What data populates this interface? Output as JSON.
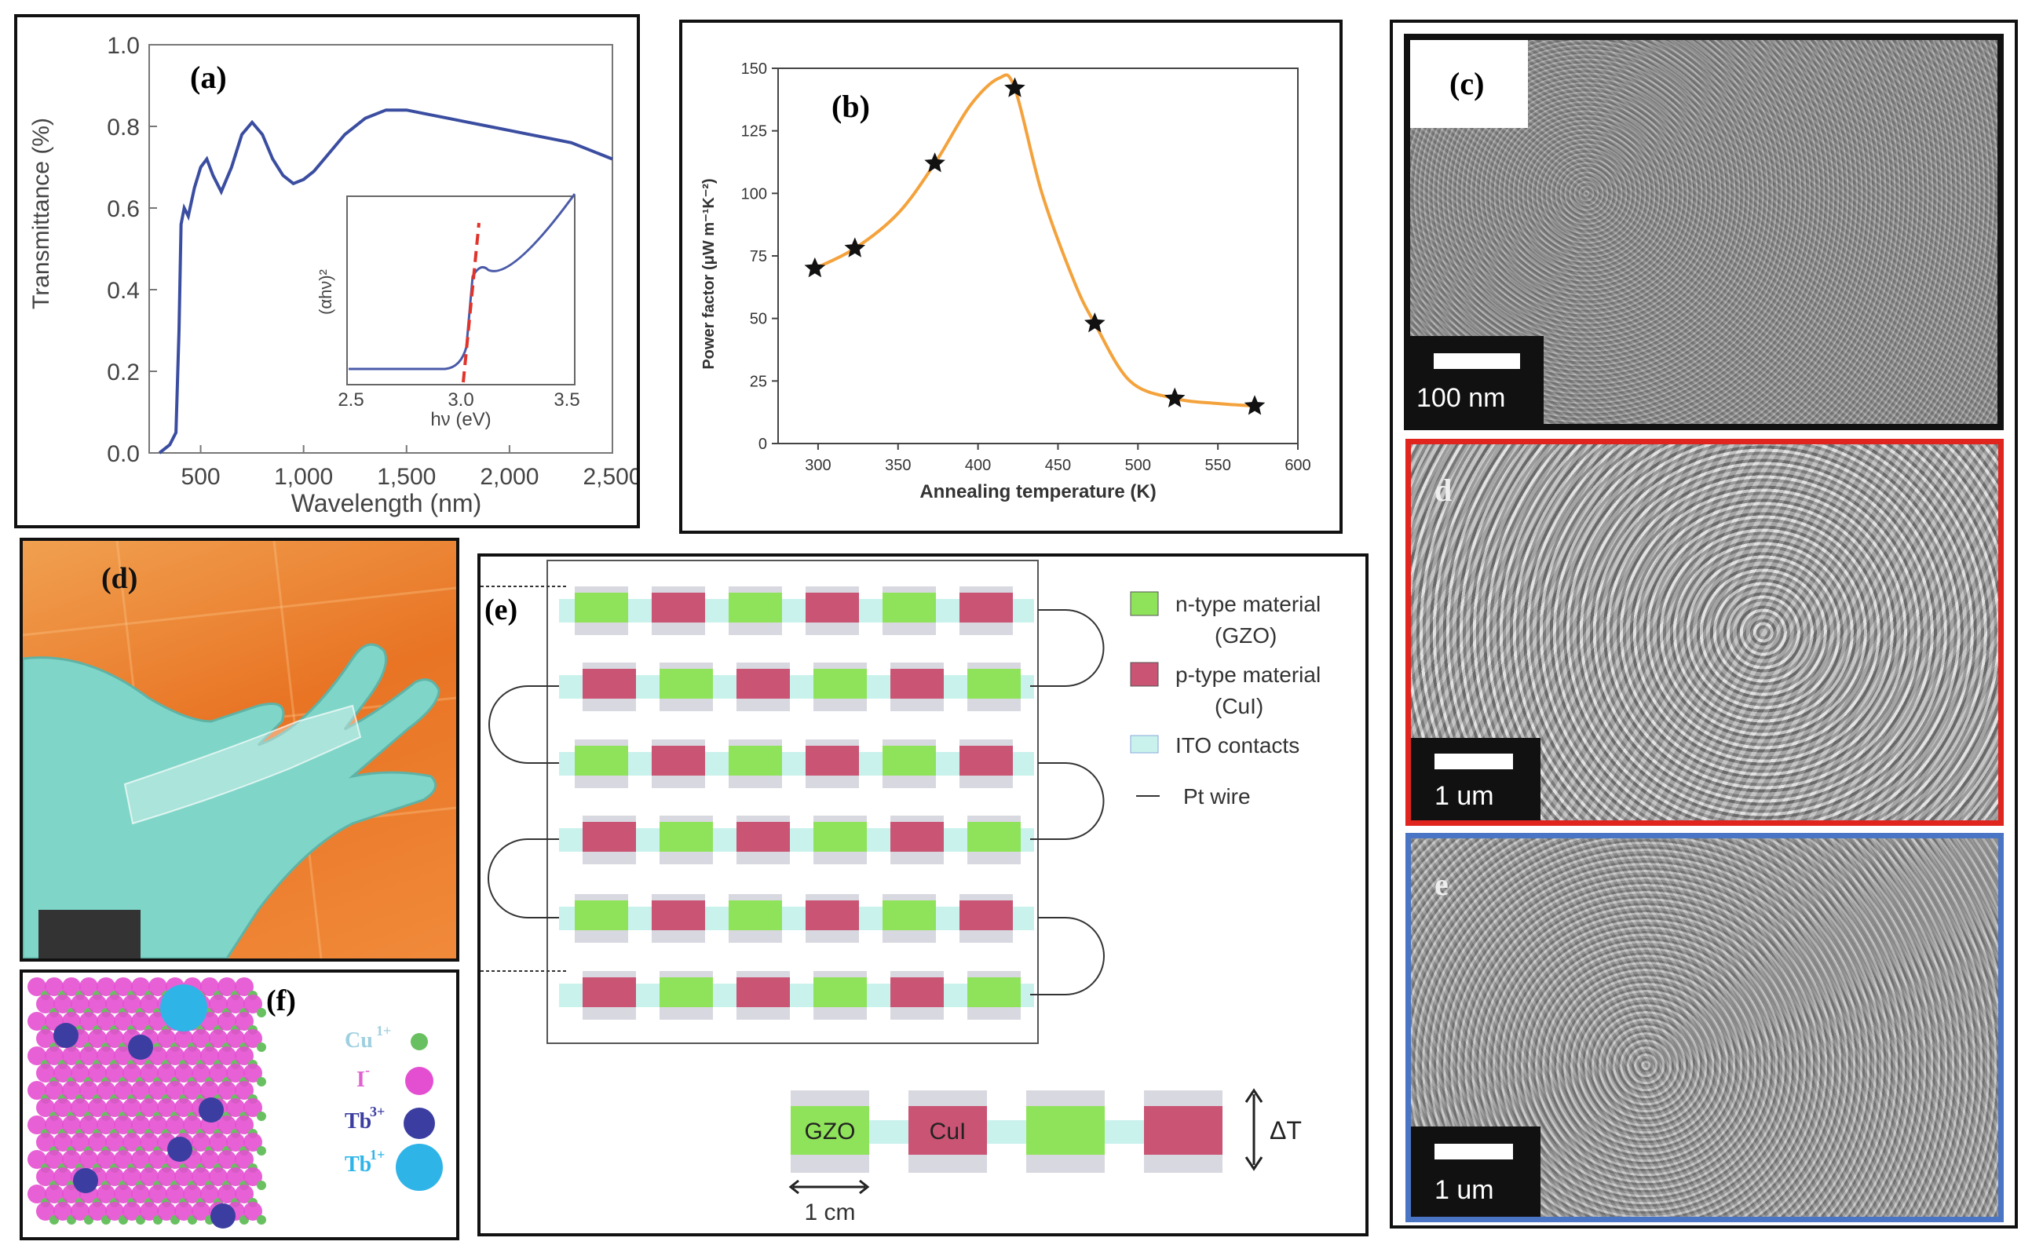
{
  "panel_a": {
    "label": "(a)",
    "ylabel": "Transmittance (%)",
    "xlabel": "Wavelength (nm)",
    "yticks": [
      "0.0",
      "0.2",
      "0.4",
      "0.6",
      "0.8",
      "1.0"
    ],
    "xticks": [
      "500",
      "1,000",
      "1,500",
      "2,000",
      "2,500"
    ],
    "inset_ylabel": "(αhν)²",
    "inset_xlabel": "hν (eV)",
    "inset_xticks": [
      "2.5",
      "3.0",
      "3.5"
    ],
    "colors": {
      "curve": "#3a4da0",
      "tangent": "#e0332a"
    }
  },
  "chart_data": [
    {
      "type": "line",
      "title": "(a)",
      "xlabel": "Wavelength (nm)",
      "ylabel": "Transmittance (%)",
      "xlim": [
        250,
        2500
      ],
      "ylim": [
        0,
        1.0
      ],
      "x": [
        300,
        350,
        380,
        395,
        405,
        420,
        440,
        470,
        500,
        530,
        560,
        600,
        650,
        700,
        750,
        800,
        850,
        900,
        950,
        1000,
        1050,
        1100,
        1200,
        1300,
        1400,
        1500,
        1600,
        1700,
        1800,
        1900,
        2000,
        2100,
        2200,
        2300,
        2400,
        2500
      ],
      "values": [
        0.0,
        0.02,
        0.05,
        0.3,
        0.56,
        0.6,
        0.58,
        0.65,
        0.7,
        0.72,
        0.68,
        0.64,
        0.7,
        0.78,
        0.81,
        0.78,
        0.72,
        0.68,
        0.66,
        0.67,
        0.69,
        0.72,
        0.78,
        0.82,
        0.84,
        0.84,
        0.83,
        0.82,
        0.81,
        0.8,
        0.79,
        0.78,
        0.77,
        0.76,
        0.74,
        0.72
      ]
    },
    {
      "type": "line",
      "title": "(b)",
      "xlabel": "Annealing temperature (K)",
      "ylabel": "Power factor (μW m⁻¹K⁻²)",
      "xlim": [
        275,
        600
      ],
      "ylim": [
        0,
        150
      ],
      "xticks": [
        "300",
        "350",
        "400",
        "450",
        "500",
        "550",
        "600"
      ],
      "yticks": [
        "0",
        "25",
        "50",
        "75",
        "100",
        "125",
        "150"
      ],
      "points_x": [
        298,
        323,
        373,
        423,
        473,
        523,
        573
      ],
      "points_y": [
        70,
        78,
        112,
        142,
        48,
        18,
        15
      ],
      "curve_x": [
        298,
        323,
        350,
        373,
        395,
        413,
        423,
        440,
        460,
        473,
        495,
        523,
        550,
        573
      ],
      "curve_y": [
        70,
        78,
        92,
        112,
        135,
        146,
        142,
        100,
        65,
        48,
        25,
        18,
        16,
        15
      ],
      "color": "#f4a23c"
    }
  ],
  "panel_c": {
    "label": "(c)",
    "scale": "100 nm"
  },
  "panel_c2": {
    "label": "d",
    "scale": "1 um"
  },
  "panel_c3": {
    "label": "e",
    "scale": "1 um"
  },
  "panel_d": {
    "label": "(d)"
  },
  "panel_e": {
    "label": "(e)",
    "legend": [
      {
        "text1": "n-type material",
        "text2": "(GZO)"
      },
      {
        "text1": "p-type material",
        "text2": "(CuI)"
      },
      {
        "text1": "ITO contacts"
      },
      {
        "text1": "Pt wire"
      }
    ],
    "detail_gzo": "GZO",
    "detail_cui": "CuI",
    "delta": "ΔT",
    "scale": "1 cm",
    "colors": {
      "n": "#8fe35a",
      "p": "#c95473",
      "ito": "#c9f2ec",
      "wire": "#333333"
    }
  },
  "panel_f": {
    "label": "(f)",
    "legend": [
      {
        "ion": "Cu",
        "charge": "1+",
        "color": "#69c060"
      },
      {
        "ion": "I",
        "charge": "-",
        "color": "#e44fd2"
      },
      {
        "ion": "Tb",
        "charge": "3+",
        "color": "#3b3ea0"
      },
      {
        "ion": "Tb",
        "charge": "1+",
        "color": "#2fb4e8"
      }
    ]
  }
}
